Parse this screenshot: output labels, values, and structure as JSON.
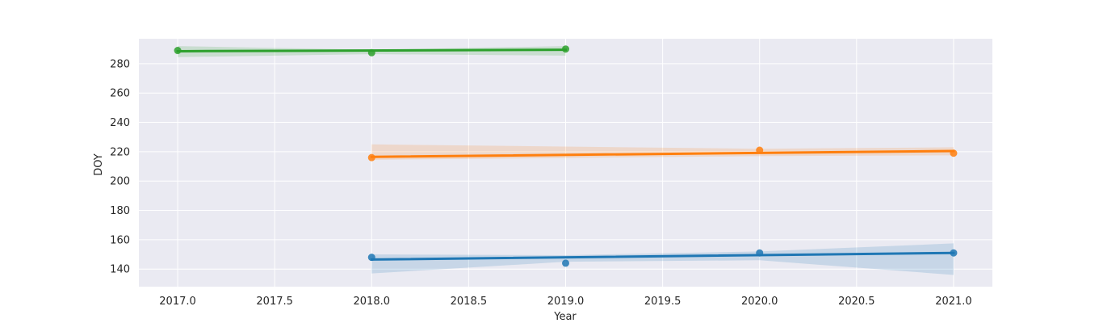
{
  "chart_data": {
    "type": "scatter",
    "title": "",
    "xlabel": "Year",
    "ylabel": "DOY",
    "xlim": [
      2016.8,
      2021.2
    ],
    "ylim": [
      128,
      297
    ],
    "xticks": [
      2017.0,
      2017.5,
      2018.0,
      2018.5,
      2019.0,
      2019.5,
      2020.0,
      2020.5,
      2021.0
    ],
    "xtick_labels": [
      "2017.0",
      "2017.5",
      "2018.0",
      "2018.5",
      "2019.0",
      "2019.5",
      "2020.0",
      "2020.5",
      "2021.0"
    ],
    "yticks": [
      140,
      160,
      180,
      200,
      220,
      240,
      260,
      280
    ],
    "ytick_labels": [
      "140",
      "160",
      "180",
      "200",
      "220",
      "240",
      "260",
      "280"
    ],
    "grid": true,
    "background": "#eaeaf2",
    "series": [
      {
        "color": "#1f77b4",
        "points": [
          [
            2018,
            148
          ],
          [
            2019,
            144
          ],
          [
            2020,
            151
          ],
          [
            2021,
            151
          ]
        ],
        "fit": [
          [
            2018,
            146.5
          ],
          [
            2021,
            151
          ]
        ],
        "ci_upper": [
          [
            2018,
            150
          ],
          [
            2019,
            149.5
          ],
          [
            2020,
            152
          ],
          [
            2021,
            157.5
          ]
        ],
        "ci_lower": [
          [
            2018,
            137
          ],
          [
            2019,
            145
          ],
          [
            2020,
            146
          ],
          [
            2021,
            136
          ]
        ]
      },
      {
        "color": "#ff7f0e",
        "points": [
          [
            2018,
            216
          ],
          [
            2020,
            221
          ],
          [
            2021,
            219
          ]
        ],
        "fit": [
          [
            2018,
            216.5
          ],
          [
            2021,
            220.5
          ]
        ],
        "ci_upper": [
          [
            2018,
            225
          ],
          [
            2020,
            222
          ],
          [
            2021,
            223
          ]
        ],
        "ci_lower": [
          [
            2018,
            214.5
          ],
          [
            2020,
            217
          ],
          [
            2021,
            217.5
          ]
        ]
      },
      {
        "color": "#2ca02c",
        "points": [
          [
            2017,
            289
          ],
          [
            2018,
            287.5
          ],
          [
            2019,
            290
          ]
        ],
        "fit": [
          [
            2017,
            288.5
          ],
          [
            2019,
            289.5
          ]
        ],
        "ci_upper": [
          [
            2017,
            292
          ],
          [
            2018,
            289.5
          ],
          [
            2019,
            292
          ]
        ],
        "ci_lower": [
          [
            2017,
            284.5
          ],
          [
            2018,
            286.5
          ],
          [
            2019,
            285.5
          ]
        ]
      }
    ]
  }
}
